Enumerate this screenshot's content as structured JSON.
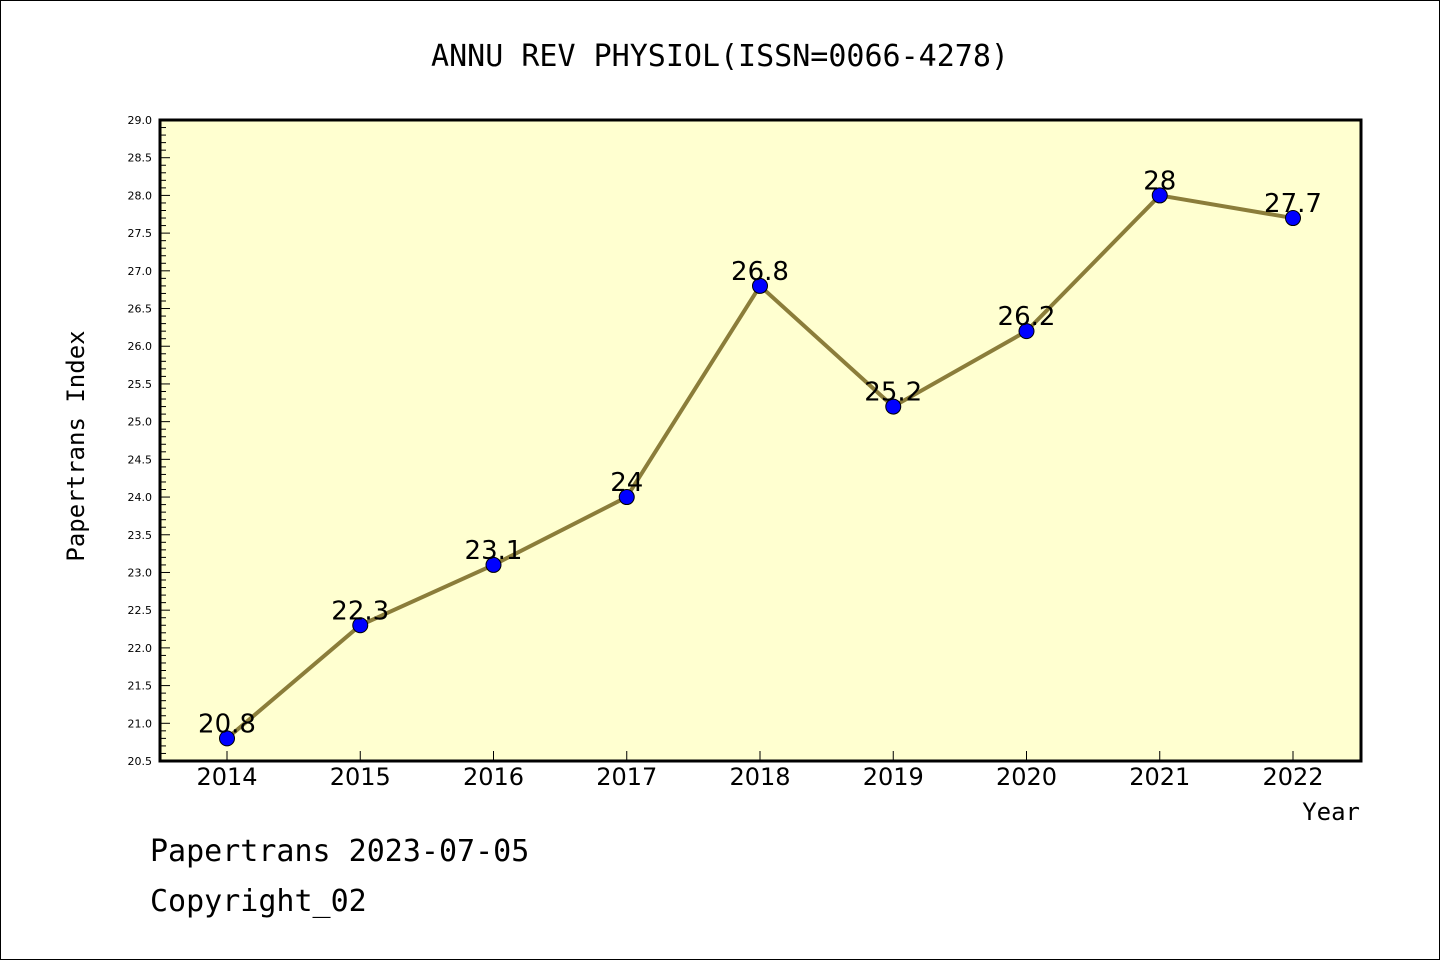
{
  "chart_data": {
    "type": "line",
    "title": "ANNU REV PHYSIOL(ISSN=0066-4278)",
    "xlabel": "Year",
    "ylabel": "Papertrans Index",
    "categories": [
      "2014",
      "2015",
      "2016",
      "2017",
      "2018",
      "2019",
      "2020",
      "2021",
      "2022"
    ],
    "series": [
      {
        "values": [
          20.8,
          22.3,
          23.1,
          24,
          26.8,
          25.2,
          26.2,
          28,
          27.7
        ],
        "data_labels": [
          "20.8",
          "22.3",
          "23.1",
          "24",
          "26.8",
          "25.2",
          "26.2",
          "28",
          "27.7"
        ]
      }
    ],
    "ylim": [
      20.5,
      29.0
    ],
    "yticks": [
      "20.5",
      "21.0",
      "21.5",
      "22.0",
      "22.5",
      "23.0",
      "23.5",
      "24.0",
      "24.5",
      "25.0",
      "25.5",
      "26.0",
      "26.5",
      "27.0",
      "27.5",
      "28.0",
      "28.5",
      "29.0"
    ],
    "grid": false,
    "colors": {
      "plot_bg": "#ffffd0",
      "line": "#8b7d3a",
      "marker": "#0000ff"
    }
  },
  "footer": {
    "line1": "Papertrans 2023-07-05",
    "line2": "Copyright_02"
  }
}
